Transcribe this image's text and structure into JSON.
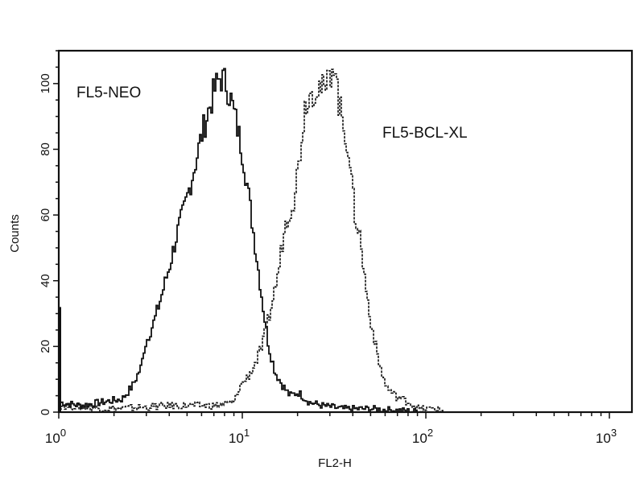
{
  "chart_data": {
    "type": "line",
    "title": "",
    "xlabel": "FL2-H",
    "ylabel": "Counts",
    "x_scale": "log",
    "xlim": [
      1,
      1260
    ],
    "ylim": [
      0,
      110
    ],
    "grid": false,
    "x_ticks": [
      {
        "value": 1,
        "base": "10",
        "exp": "0"
      },
      {
        "value": 10,
        "base": "10",
        "exp": "1"
      },
      {
        "value": 100,
        "base": "10",
        "exp": "2"
      },
      {
        "value": 1000,
        "base": "10",
        "exp": "3"
      }
    ],
    "y_ticks": [
      0,
      20,
      40,
      60,
      80,
      100
    ],
    "series": [
      {
        "name": "FL5-NEO",
        "style": "solid",
        "color": "#111111",
        "x": [
          1,
          1.3,
          1.7,
          2.2,
          2.5,
          2.8,
          2.9,
          3.3,
          3.7,
          4.0,
          4.4,
          4.8,
          5.3,
          6.0,
          6.5,
          7.0,
          7.5,
          8.1,
          8.6,
          9.2,
          10,
          10.6,
          11.2,
          12.2,
          13,
          13.8,
          15,
          16.5,
          18,
          20,
          23,
          27,
          35,
          50,
          100
        ],
        "y": [
          3,
          2,
          3,
          4,
          8,
          14,
          20,
          28,
          38,
          45,
          55,
          62,
          72,
          85,
          92,
          98,
          102,
          100,
          95,
          88,
          78,
          68,
          58,
          42,
          30,
          20,
          12,
          8,
          5,
          6,
          3,
          2,
          1,
          1,
          0
        ]
      },
      {
        "name": "FL5-BCL-XL",
        "style": "dashed",
        "color": "#111111",
        "x": [
          1,
          2,
          4,
          7,
          9,
          9.6,
          10.4,
          11.5,
          12.7,
          14,
          15.5,
          16.7,
          18,
          19,
          20.5,
          22,
          25.7,
          28,
          31.5,
          33,
          35,
          37.6,
          40.6,
          43,
          45,
          48.8,
          52,
          55,
          60,
          67,
          80,
          91,
          110,
          130
        ],
        "y": [
          2,
          1,
          2,
          2,
          3,
          8,
          10,
          14,
          20,
          30,
          42,
          55,
          62,
          65,
          80,
          95,
          100,
          97,
          108,
          95,
          88,
          80,
          60,
          55,
          45,
          30,
          22,
          15,
          8,
          5,
          3,
          1,
          1,
          0
        ]
      }
    ],
    "annotations": [
      {
        "text": "FL5-NEO",
        "series": "FL5-NEO"
      },
      {
        "text": "FL5-BCL-XL",
        "series": "FL5-BCL-XL"
      }
    ]
  }
}
